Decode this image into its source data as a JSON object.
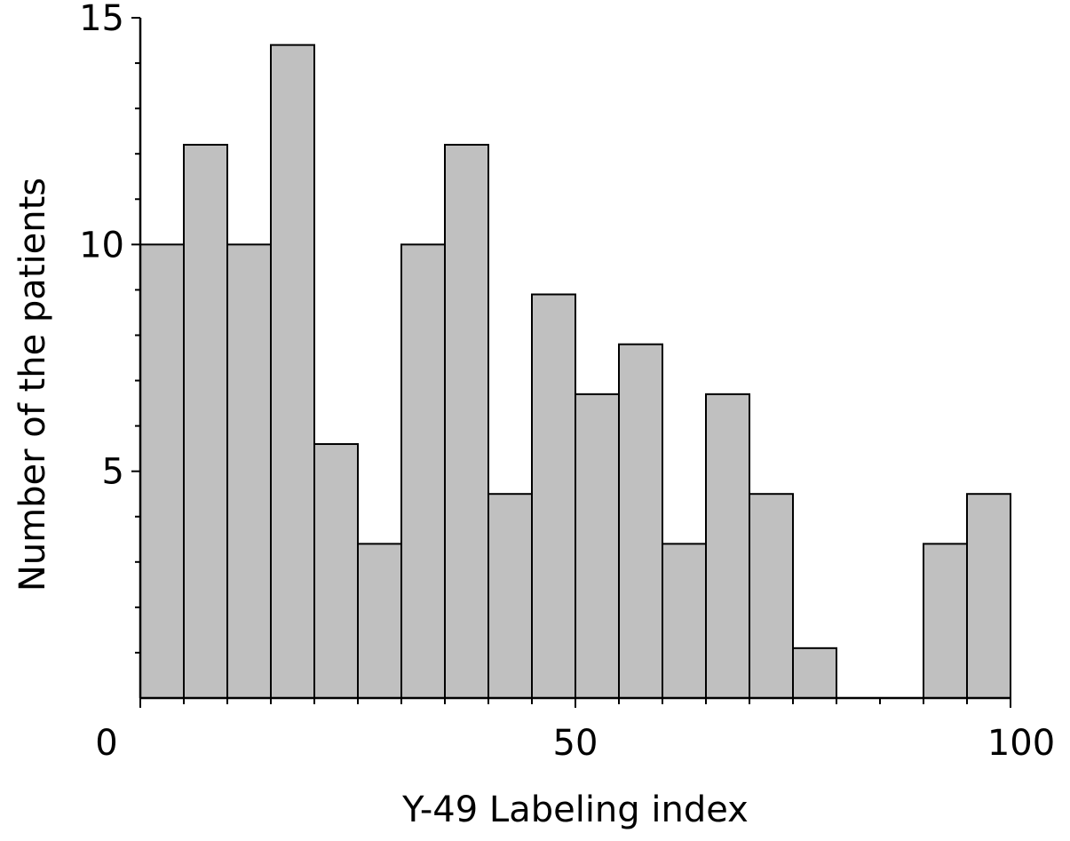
{
  "chart_data": {
    "type": "bar",
    "subtype": "histogram",
    "title": "",
    "xlabel": "Y-49 Labeling index",
    "ylabel": "Number of the patients",
    "xlim": [
      0,
      100
    ],
    "ylim": [
      0,
      15
    ],
    "bin_width": 5,
    "x_tick_labels": [
      "0",
      "50",
      "100"
    ],
    "y_tick_labels": [
      "5",
      "10",
      "15"
    ],
    "x_major_ticks": [
      0,
      50,
      100
    ],
    "x_minor_step": 5,
    "y_major_ticks": [
      5,
      10,
      15
    ],
    "y_minor_step": 1,
    "grid": false,
    "legend": "none",
    "bins": [
      {
        "start": 0,
        "end": 5,
        "value": 10
      },
      {
        "start": 5,
        "end": 10,
        "value": 12.2
      },
      {
        "start": 10,
        "end": 15,
        "value": 10
      },
      {
        "start": 15,
        "end": 20,
        "value": 14.4
      },
      {
        "start": 20,
        "end": 25,
        "value": 5.6
      },
      {
        "start": 25,
        "end": 30,
        "value": 3.4
      },
      {
        "start": 30,
        "end": 35,
        "value": 10
      },
      {
        "start": 35,
        "end": 40,
        "value": 12.2
      },
      {
        "start": 40,
        "end": 45,
        "value": 4.5
      },
      {
        "start": 45,
        "end": 50,
        "value": 8.9
      },
      {
        "start": 50,
        "end": 55,
        "value": 6.7
      },
      {
        "start": 55,
        "end": 60,
        "value": 7.8
      },
      {
        "start": 60,
        "end": 65,
        "value": 3.4
      },
      {
        "start": 65,
        "end": 70,
        "value": 6.7
      },
      {
        "start": 70,
        "end": 75,
        "value": 4.5
      },
      {
        "start": 75,
        "end": 80,
        "value": 1.1
      },
      {
        "start": 80,
        "end": 85,
        "value": 0
      },
      {
        "start": 85,
        "end": 90,
        "value": 0
      },
      {
        "start": 90,
        "end": 95,
        "value": 3.4
      },
      {
        "start": 95,
        "end": 100,
        "value": 4.5
      }
    ],
    "colors": {
      "bar_fill": "#c0c0c0",
      "bar_stroke": "#000000",
      "axis": "#000000"
    }
  }
}
